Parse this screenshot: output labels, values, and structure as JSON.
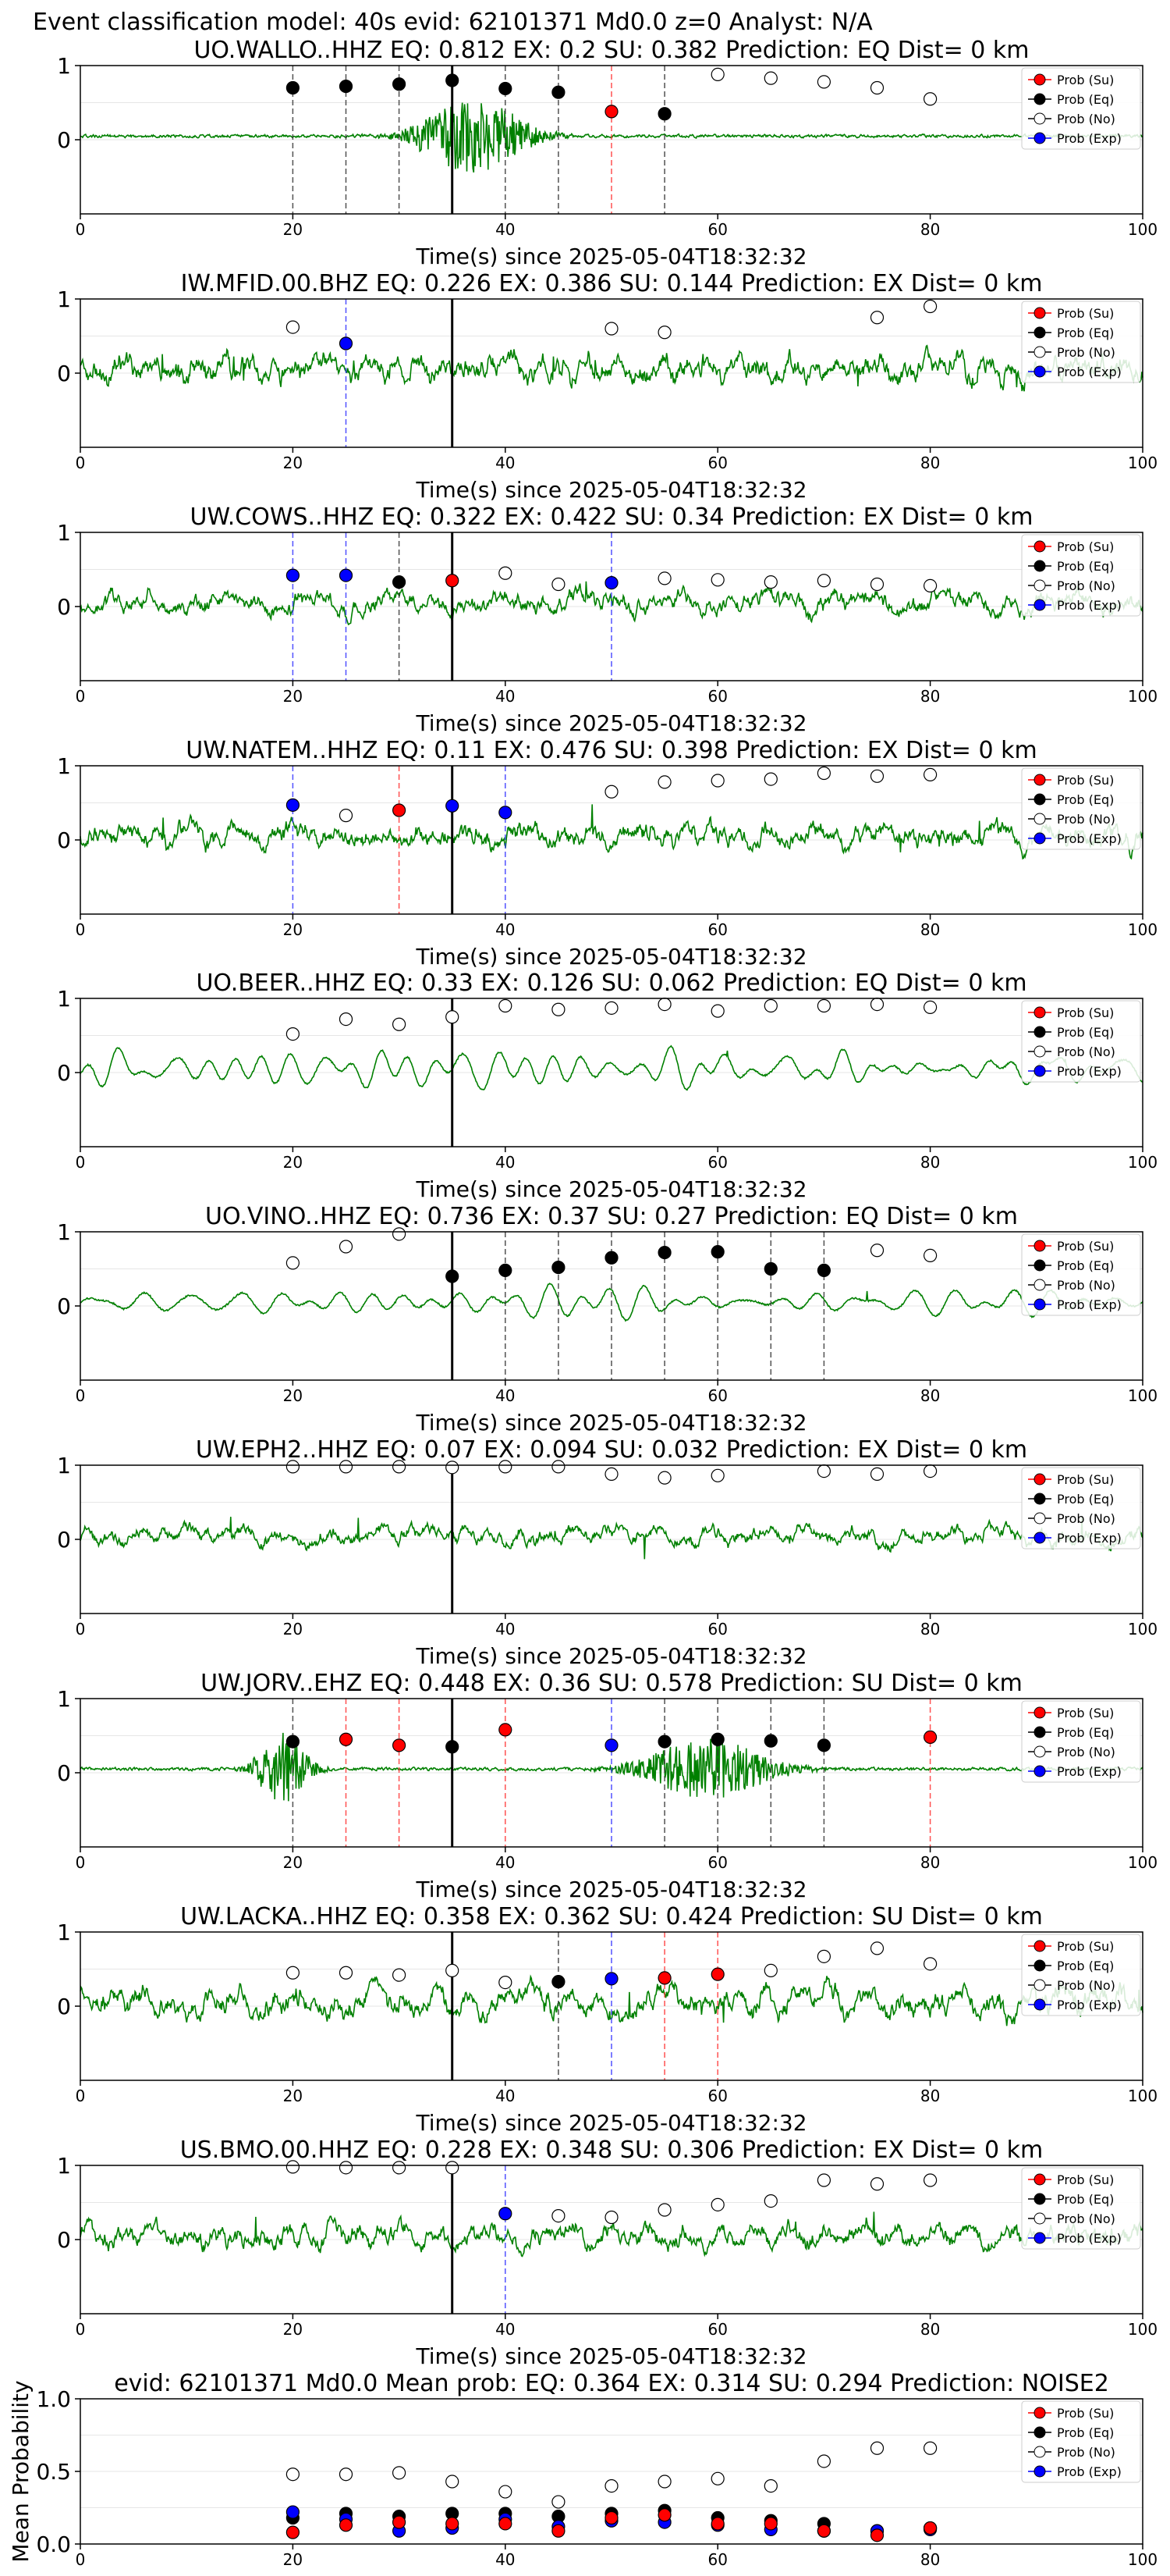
{
  "figure": {
    "suptitle": "Event classification model: 40s evid: 62101371 Md0.0 z=0 Analyst: N/A"
  },
  "legend": {
    "entries": [
      {
        "label": "Prob (Su)",
        "color": "#ff0000",
        "fill": true
      },
      {
        "label": "Prob (Eq)",
        "color": "#000000",
        "fill": true
      },
      {
        "label": "Prob (No)",
        "color": "#ffffff",
        "fill": false
      },
      {
        "label": "Prob (Exp)",
        "color": "#0000ff",
        "fill": true
      }
    ]
  },
  "colors": {
    "waveform": "#008000",
    "su": "#ff0000",
    "eq": "#000000",
    "no": "#ffffff",
    "exp": "#0000ff",
    "pick_line": "#000000"
  },
  "chart_data": [
    {
      "type": "line",
      "title": "UO.WALLO..HHZ   EQ: 0.812  EX: 0.2  SU: 0.382   Prediction: EQ    Dist= 0 km",
      "xlabel": "Time(s) since 2025-05-04T18:32:32",
      "xlim": [
        0,
        100
      ],
      "ylim": [
        -1,
        1
      ],
      "xticks": [
        "0",
        "20",
        "40",
        "60",
        "80",
        "100"
      ],
      "yticks": [
        "1",
        "0"
      ],
      "waveform": {
        "style": "quiet-burst",
        "seed": 11,
        "burst_center": 37,
        "burst_width": 5,
        "burst_amp": 0.95
      },
      "pick_time": 35,
      "points": [
        {
          "t": 20,
          "p": 0.7,
          "cls": "eq"
        },
        {
          "t": 25,
          "p": 0.72,
          "cls": "eq"
        },
        {
          "t": 30,
          "p": 0.75,
          "cls": "eq"
        },
        {
          "t": 35,
          "p": 0.8,
          "cls": "eq"
        },
        {
          "t": 40,
          "p": 0.69,
          "cls": "eq"
        },
        {
          "t": 45,
          "p": 0.64,
          "cls": "eq"
        },
        {
          "t": 50,
          "p": 0.38,
          "cls": "su"
        },
        {
          "t": 55,
          "p": 0.35,
          "cls": "eq"
        },
        {
          "t": 60,
          "p": 0.88,
          "cls": "no"
        },
        {
          "t": 65,
          "p": 0.83,
          "cls": "no"
        },
        {
          "t": 70,
          "p": 0.78,
          "cls": "no"
        },
        {
          "t": 75,
          "p": 0.7,
          "cls": "no"
        },
        {
          "t": 80,
          "p": 0.55,
          "cls": "no"
        }
      ]
    },
    {
      "type": "line",
      "title": "IW.MFID.00.BHZ   EQ: 0.226  EX: 0.386  SU: 0.144   Prediction: EX    Dist= 0 km",
      "xlabel": "Time(s) since 2025-05-04T18:32:32",
      "xlim": [
        0,
        100
      ],
      "ylim": [
        -1,
        1
      ],
      "xticks": [
        "0",
        "20",
        "40",
        "60",
        "80",
        "100"
      ],
      "yticks": [
        "1",
        "0"
      ],
      "waveform": {
        "style": "noisy",
        "seed": 23,
        "amp": 0.6
      },
      "pick_time": 35,
      "points": [
        {
          "t": 20,
          "p": 0.62,
          "cls": "no"
        },
        {
          "t": 25,
          "p": 0.4,
          "cls": "exp"
        },
        {
          "t": 50,
          "p": 0.6,
          "cls": "no"
        },
        {
          "t": 55,
          "p": 0.55,
          "cls": "no"
        },
        {
          "t": 75,
          "p": 0.75,
          "cls": "no"
        },
        {
          "t": 80,
          "p": 0.9,
          "cls": "no"
        }
      ]
    },
    {
      "type": "line",
      "title": "UW.COWS..HHZ   EQ: 0.322  EX: 0.422  SU: 0.34   Prediction: EX    Dist= 0 km",
      "xlabel": "Time(s) since 2025-05-04T18:32:32",
      "xlim": [
        0,
        100
      ],
      "ylim": [
        -1,
        1
      ],
      "xticks": [
        "0",
        "20",
        "40",
        "60",
        "80",
        "100"
      ],
      "yticks": [
        "1",
        "0"
      ],
      "waveform": {
        "style": "noisy",
        "seed": 37,
        "amp": 0.45
      },
      "pick_time": 35,
      "points": [
        {
          "t": 20,
          "p": 0.42,
          "cls": "exp"
        },
        {
          "t": 25,
          "p": 0.42,
          "cls": "exp"
        },
        {
          "t": 30,
          "p": 0.33,
          "cls": "eq"
        },
        {
          "t": 35,
          "p": 0.35,
          "cls": "su"
        },
        {
          "t": 40,
          "p": 0.45,
          "cls": "no"
        },
        {
          "t": 45,
          "p": 0.3,
          "cls": "no"
        },
        {
          "t": 50,
          "p": 0.32,
          "cls": "exp"
        },
        {
          "t": 55,
          "p": 0.38,
          "cls": "no"
        },
        {
          "t": 60,
          "p": 0.36,
          "cls": "no"
        },
        {
          "t": 65,
          "p": 0.33,
          "cls": "no"
        },
        {
          "t": 70,
          "p": 0.35,
          "cls": "no"
        },
        {
          "t": 75,
          "p": 0.3,
          "cls": "no"
        },
        {
          "t": 80,
          "p": 0.28,
          "cls": "no"
        }
      ]
    },
    {
      "type": "line",
      "title": "UW.NATEM..HHZ   EQ: 0.11  EX: 0.476  SU: 0.398   Prediction: EX    Dist= 0 km",
      "xlabel": "Time(s) since 2025-05-04T18:32:32",
      "xlim": [
        0,
        100
      ],
      "ylim": [
        -1,
        1
      ],
      "xticks": [
        "0",
        "20",
        "40",
        "60",
        "80",
        "100"
      ],
      "yticks": [
        "1",
        "0"
      ],
      "waveform": {
        "style": "noisy",
        "seed": 41,
        "amp": 0.5
      },
      "pick_time": 35,
      "points": [
        {
          "t": 20,
          "p": 0.47,
          "cls": "exp"
        },
        {
          "t": 25,
          "p": 0.33,
          "cls": "no"
        },
        {
          "t": 30,
          "p": 0.4,
          "cls": "su"
        },
        {
          "t": 35,
          "p": 0.46,
          "cls": "exp"
        },
        {
          "t": 40,
          "p": 0.37,
          "cls": "exp"
        },
        {
          "t": 50,
          "p": 0.65,
          "cls": "no"
        },
        {
          "t": 55,
          "p": 0.78,
          "cls": "no"
        },
        {
          "t": 60,
          "p": 0.8,
          "cls": "no"
        },
        {
          "t": 65,
          "p": 0.82,
          "cls": "no"
        },
        {
          "t": 70,
          "p": 0.9,
          "cls": "no"
        },
        {
          "t": 75,
          "p": 0.86,
          "cls": "no"
        },
        {
          "t": 80,
          "p": 0.88,
          "cls": "no"
        }
      ]
    },
    {
      "type": "line",
      "title": "UO.BEER..HHZ   EQ: 0.33  EX: 0.126  SU: 0.062   Prediction: EQ    Dist= 0 km",
      "xlabel": "Time(s) since 2025-05-04T18:32:32",
      "xlim": [
        0,
        100
      ],
      "ylim": [
        -1,
        1
      ],
      "xticks": [
        "0",
        "20",
        "40",
        "60",
        "80",
        "100"
      ],
      "yticks": [
        "1",
        "0"
      ],
      "waveform": {
        "style": "smooth",
        "seed": 53,
        "amp": 0.6
      },
      "pick_time": 35,
      "points": [
        {
          "t": 20,
          "p": 0.52,
          "cls": "no"
        },
        {
          "t": 25,
          "p": 0.72,
          "cls": "no"
        },
        {
          "t": 30,
          "p": 0.65,
          "cls": "no"
        },
        {
          "t": 35,
          "p": 0.75,
          "cls": "no"
        },
        {
          "t": 40,
          "p": 0.9,
          "cls": "no"
        },
        {
          "t": 45,
          "p": 0.85,
          "cls": "no"
        },
        {
          "t": 50,
          "p": 0.87,
          "cls": "no"
        },
        {
          "t": 55,
          "p": 0.92,
          "cls": "no"
        },
        {
          "t": 60,
          "p": 0.83,
          "cls": "no"
        },
        {
          "t": 65,
          "p": 0.9,
          "cls": "no"
        },
        {
          "t": 70,
          "p": 0.9,
          "cls": "no"
        },
        {
          "t": 75,
          "p": 0.92,
          "cls": "no"
        },
        {
          "t": 80,
          "p": 0.88,
          "cls": "no"
        }
      ]
    },
    {
      "type": "line",
      "title": "UO.VINO..HHZ   EQ: 0.736  EX: 0.37  SU: 0.27   Prediction: EQ    Dist= 0 km",
      "xlabel": "Time(s) since 2025-05-04T18:32:32",
      "xlim": [
        0,
        100
      ],
      "ylim": [
        -1,
        1
      ],
      "xticks": [
        "0",
        "20",
        "40",
        "60",
        "80",
        "100"
      ],
      "yticks": [
        "1",
        "0"
      ],
      "waveform": {
        "style": "smooth",
        "seed": 67,
        "amp": 0.45
      },
      "pick_time": 35,
      "points": [
        {
          "t": 20,
          "p": 0.58,
          "cls": "no"
        },
        {
          "t": 25,
          "p": 0.8,
          "cls": "no"
        },
        {
          "t": 30,
          "p": 0.97,
          "cls": "no"
        },
        {
          "t": 35,
          "p": 0.4,
          "cls": "eq"
        },
        {
          "t": 40,
          "p": 0.48,
          "cls": "eq"
        },
        {
          "t": 45,
          "p": 0.52,
          "cls": "eq"
        },
        {
          "t": 50,
          "p": 0.65,
          "cls": "eq"
        },
        {
          "t": 55,
          "p": 0.72,
          "cls": "eq"
        },
        {
          "t": 60,
          "p": 0.73,
          "cls": "eq"
        },
        {
          "t": 65,
          "p": 0.5,
          "cls": "eq"
        },
        {
          "t": 70,
          "p": 0.48,
          "cls": "eq"
        },
        {
          "t": 75,
          "p": 0.75,
          "cls": "no"
        },
        {
          "t": 80,
          "p": 0.68,
          "cls": "no"
        }
      ]
    },
    {
      "type": "line",
      "title": "UW.EPH2..HHZ   EQ: 0.07  EX: 0.094  SU: 0.032   Prediction: EX    Dist= 0 km",
      "xlabel": "Time(s) since 2025-05-04T18:32:32",
      "xlim": [
        0,
        100
      ],
      "ylim": [
        -1,
        1
      ],
      "xticks": [
        "0",
        "20",
        "40",
        "60",
        "80",
        "100"
      ],
      "yticks": [
        "1",
        "0"
      ],
      "waveform": {
        "style": "noisy",
        "seed": 79,
        "amp": 0.35
      },
      "pick_time": 35,
      "points": [
        {
          "t": 20,
          "p": 0.98,
          "cls": "no"
        },
        {
          "t": 25,
          "p": 0.98,
          "cls": "no"
        },
        {
          "t": 30,
          "p": 0.98,
          "cls": "no"
        },
        {
          "t": 35,
          "p": 0.97,
          "cls": "no"
        },
        {
          "t": 40,
          "p": 0.98,
          "cls": "no"
        },
        {
          "t": 45,
          "p": 0.98,
          "cls": "no"
        },
        {
          "t": 50,
          "p": 0.88,
          "cls": "no"
        },
        {
          "t": 55,
          "p": 0.83,
          "cls": "no"
        },
        {
          "t": 60,
          "p": 0.86,
          "cls": "no"
        },
        {
          "t": 70,
          "p": 0.92,
          "cls": "no"
        },
        {
          "t": 75,
          "p": 0.88,
          "cls": "no"
        },
        {
          "t": 80,
          "p": 0.92,
          "cls": "no"
        }
      ]
    },
    {
      "type": "line",
      "title": "UW.JORV..EHZ   EQ: 0.448  EX: 0.36  SU: 0.578   Prediction: SU    Dist= 0 km",
      "xlabel": "Time(s) since 2025-05-04T18:32:32",
      "xlim": [
        0,
        100
      ],
      "ylim": [
        -1,
        1
      ],
      "xticks": [
        "0",
        "20",
        "40",
        "60",
        "80",
        "100"
      ],
      "yticks": [
        "1",
        "0"
      ],
      "waveform": {
        "style": "quiet-burst",
        "seed": 83,
        "burst_center": 59,
        "burst_width": 6,
        "burst_amp": 0.75,
        "burst2_center": 19,
        "burst2_width": 2.5,
        "burst2_amp": 0.85
      },
      "pick_time": 35,
      "points": [
        {
          "t": 20,
          "p": 0.42,
          "cls": "eq"
        },
        {
          "t": 25,
          "p": 0.45,
          "cls": "su"
        },
        {
          "t": 30,
          "p": 0.37,
          "cls": "su"
        },
        {
          "t": 35,
          "p": 0.35,
          "cls": "eq"
        },
        {
          "t": 40,
          "p": 0.58,
          "cls": "su"
        },
        {
          "t": 50,
          "p": 0.37,
          "cls": "exp"
        },
        {
          "t": 55,
          "p": 0.42,
          "cls": "eq"
        },
        {
          "t": 60,
          "p": 0.45,
          "cls": "eq"
        },
        {
          "t": 65,
          "p": 0.43,
          "cls": "eq"
        },
        {
          "t": 70,
          "p": 0.37,
          "cls": "eq"
        },
        {
          "t": 80,
          "p": 0.48,
          "cls": "su"
        }
      ]
    },
    {
      "type": "line",
      "title": "UW.LACKA..HHZ   EQ: 0.358  EX: 0.362  SU: 0.424   Prediction: SU    Dist= 0 km",
      "xlabel": "Time(s) since 2025-05-04T18:32:32",
      "xlim": [
        0,
        100
      ],
      "ylim": [
        -1,
        1
      ],
      "xticks": [
        "0",
        "20",
        "40",
        "60",
        "80",
        "100"
      ],
      "yticks": [
        "1",
        "0"
      ],
      "waveform": {
        "style": "noisy",
        "seed": 97,
        "amp": 0.55
      },
      "pick_time": 35,
      "points": [
        {
          "t": 20,
          "p": 0.45,
          "cls": "no"
        },
        {
          "t": 25,
          "p": 0.45,
          "cls": "no"
        },
        {
          "t": 30,
          "p": 0.42,
          "cls": "no"
        },
        {
          "t": 35,
          "p": 0.48,
          "cls": "no"
        },
        {
          "t": 40,
          "p": 0.32,
          "cls": "no"
        },
        {
          "t": 45,
          "p": 0.33,
          "cls": "eq"
        },
        {
          "t": 50,
          "p": 0.37,
          "cls": "exp"
        },
        {
          "t": 55,
          "p": 0.38,
          "cls": "su"
        },
        {
          "t": 60,
          "p": 0.43,
          "cls": "su"
        },
        {
          "t": 65,
          "p": 0.48,
          "cls": "no"
        },
        {
          "t": 70,
          "p": 0.67,
          "cls": "no"
        },
        {
          "t": 75,
          "p": 0.78,
          "cls": "no"
        },
        {
          "t": 80,
          "p": 0.57,
          "cls": "no"
        }
      ]
    },
    {
      "type": "line",
      "title": "US.BMO.00.HHZ   EQ: 0.228  EX: 0.348  SU: 0.306   Prediction: EX    Dist= 0 km",
      "xlabel": "Time(s) since 2025-05-04T18:32:32",
      "xlim": [
        0,
        100
      ],
      "ylim": [
        -1,
        1
      ],
      "xticks": [
        "0",
        "20",
        "40",
        "60",
        "80",
        "100"
      ],
      "yticks": [
        "1",
        "0"
      ],
      "waveform": {
        "style": "noisy",
        "seed": 101,
        "amp": 0.5
      },
      "pick_time": 35,
      "points": [
        {
          "t": 20,
          "p": 0.98,
          "cls": "no"
        },
        {
          "t": 25,
          "p": 0.97,
          "cls": "no"
        },
        {
          "t": 30,
          "p": 0.97,
          "cls": "no"
        },
        {
          "t": 35,
          "p": 0.97,
          "cls": "no"
        },
        {
          "t": 40,
          "p": 0.35,
          "cls": "exp"
        },
        {
          "t": 45,
          "p": 0.32,
          "cls": "no"
        },
        {
          "t": 50,
          "p": 0.3,
          "cls": "no"
        },
        {
          "t": 55,
          "p": 0.4,
          "cls": "no"
        },
        {
          "t": 60,
          "p": 0.47,
          "cls": "no"
        },
        {
          "t": 65,
          "p": 0.52,
          "cls": "no"
        },
        {
          "t": 70,
          "p": 0.8,
          "cls": "no"
        },
        {
          "t": 75,
          "p": 0.75,
          "cls": "no"
        },
        {
          "t": 80,
          "p": 0.8,
          "cls": "no"
        }
      ]
    },
    {
      "type": "scatter",
      "title": "evid: 62101371  Md0.0   Mean prob:   EQ: 0.364  EX: 0.314  SU: 0.294   Prediction: NOISE2",
      "ylabel": "Mean Probability",
      "xlim": [
        0,
        100
      ],
      "ylim": [
        0,
        1
      ],
      "xticks": [
        "0",
        "20",
        "40",
        "60",
        "80",
        "100"
      ],
      "yticks": [
        "0.0",
        "0.5",
        "1.0"
      ],
      "ytick_values": [
        0,
        0.5,
        1
      ],
      "minor_gridlines": [
        0.25,
        0.75
      ],
      "x": [
        20,
        25,
        30,
        35,
        40,
        45,
        50,
        55,
        60,
        65,
        70,
        75,
        80
      ],
      "series": [
        {
          "cls": "no",
          "values": [
            0.48,
            0.48,
            0.49,
            0.43,
            0.36,
            0.29,
            0.4,
            0.43,
            0.45,
            0.4,
            0.57,
            0.66,
            0.66
          ]
        },
        {
          "cls": "eq",
          "values": [
            0.18,
            0.21,
            0.19,
            0.21,
            0.21,
            0.19,
            0.21,
            0.23,
            0.18,
            0.16,
            0.14,
            0.09,
            0.11
          ]
        },
        {
          "cls": "exp",
          "values": [
            0.22,
            0.17,
            0.09,
            0.11,
            0.17,
            0.12,
            0.16,
            0.15,
            0.13,
            0.1,
            0.09,
            0.09,
            0.1
          ]
        },
        {
          "cls": "su",
          "values": [
            0.08,
            0.13,
            0.15,
            0.14,
            0.14,
            0.09,
            0.18,
            0.2,
            0.14,
            0.14,
            0.09,
            0.06,
            0.11
          ]
        }
      ]
    }
  ]
}
